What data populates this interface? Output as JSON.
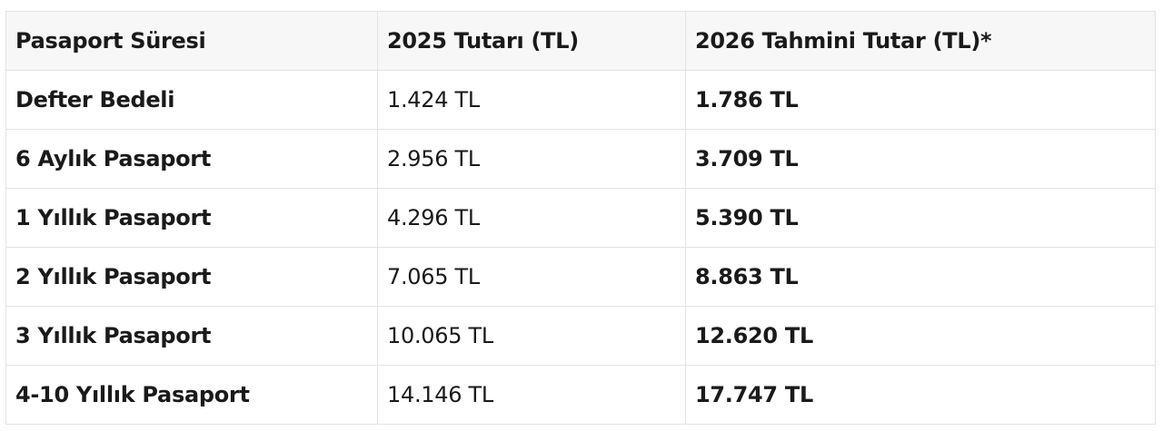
{
  "table": {
    "headers": [
      "Pasaport Süresi",
      "2025 Tutarı (TL)",
      "2026 Tahmini Tutar (TL)*"
    ],
    "rows": [
      {
        "label": "Defter Bedeli",
        "y2025": "1.424 TL",
        "y2026": "1.786 TL"
      },
      {
        "label": "6 Aylık Pasaport",
        "y2025": "2.956 TL",
        "y2026": "3.709 TL"
      },
      {
        "label": "1 Yıllık Pasaport",
        "y2025": "4.296 TL",
        "y2026": "5.390 TL"
      },
      {
        "label": "2 Yıllık Pasaport",
        "y2025": "7.065 TL",
        "y2026": "8.863 TL"
      },
      {
        "label": "3 Yıllık Pasaport",
        "y2025": "10.065 TL",
        "y2026": "12.620 TL"
      },
      {
        "label": "4-10 Yıllık Pasaport",
        "y2025": "14.146 TL",
        "y2026": "17.747 TL"
      }
    ]
  }
}
